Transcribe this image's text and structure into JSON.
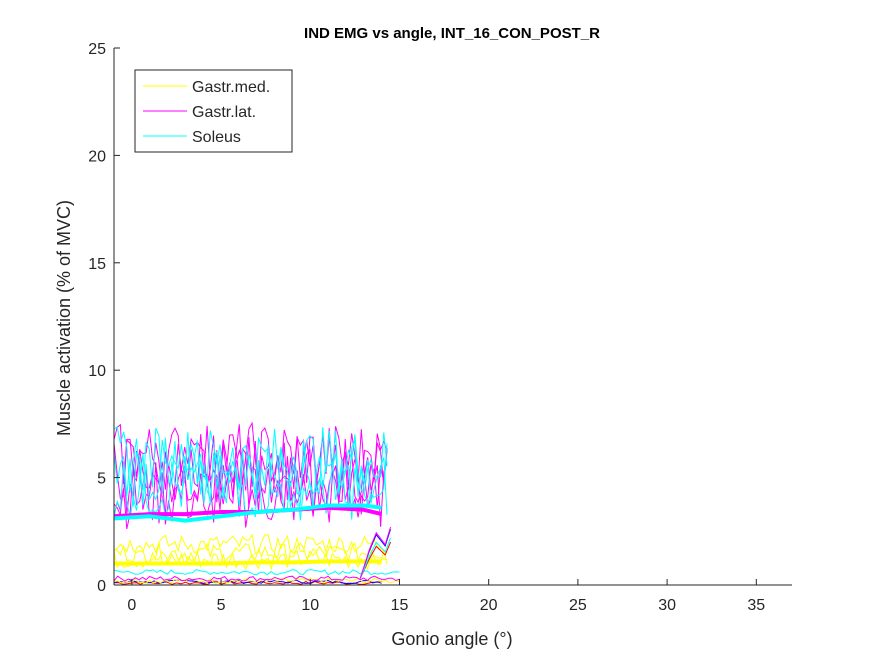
{
  "chart_data": {
    "type": "line",
    "title": "IND EMG vs angle, INT_16_CON_POST_R",
    "xlabel": "Gonio angle (°)",
    "ylabel": "Muscle activation (% of MVC)",
    "xlim": [
      -1,
      37
    ],
    "ylim": [
      0,
      25
    ],
    "xticks": [
      0,
      5,
      10,
      15,
      20,
      25,
      30,
      35
    ],
    "yticks": [
      0,
      5,
      10,
      15,
      20,
      25
    ],
    "grid": false,
    "legend_position": "top-left",
    "x_range": [
      -1,
      15
    ],
    "series": [
      {
        "name": "Gastr.med.",
        "color": "#ffff00",
        "mean": [
          [
            -1,
            1.0
          ],
          [
            1,
            1.0
          ],
          [
            3,
            1.0
          ],
          [
            5,
            1.0
          ],
          [
            7,
            1.05
          ],
          [
            9,
            1.05
          ],
          [
            11,
            1.1
          ],
          [
            13,
            1.1
          ],
          [
            14,
            1.1
          ]
        ],
        "trial_bands": [
          1.2,
          1.5,
          1.9
        ],
        "low_bands": [
          0.2
        ]
      },
      {
        "name": "Gastr.lat.",
        "color": "#ff00ff",
        "mean": [
          [
            -1,
            3.2
          ],
          [
            1,
            3.3
          ],
          [
            3,
            3.3
          ],
          [
            5,
            3.4
          ],
          [
            7,
            3.4
          ],
          [
            9,
            3.5
          ],
          [
            11,
            3.6
          ],
          [
            13,
            3.5
          ],
          [
            14,
            3.3
          ]
        ],
        "trial_bands": [
          4.2,
          4.8,
          5.4,
          6.0
        ],
        "low_bands": [
          0.3
        ]
      },
      {
        "name": "Soleus",
        "color": "#00ffff",
        "mean": [
          [
            -1,
            3.1
          ],
          [
            1,
            3.2
          ],
          [
            3,
            3.0
          ],
          [
            5,
            3.2
          ],
          [
            7,
            3.4
          ],
          [
            9,
            3.5
          ],
          [
            11,
            3.7
          ],
          [
            13,
            3.7
          ],
          [
            14,
            3.6
          ]
        ],
        "trial_bands": [
          4.6,
          5.2,
          5.8
        ],
        "low_bands": [
          0.6
        ]
      }
    ],
    "extra_traces": [
      {
        "color": "#ff0000",
        "level": 0.1
      },
      {
        "color": "#0000ff",
        "level": 0.15
      }
    ]
  }
}
